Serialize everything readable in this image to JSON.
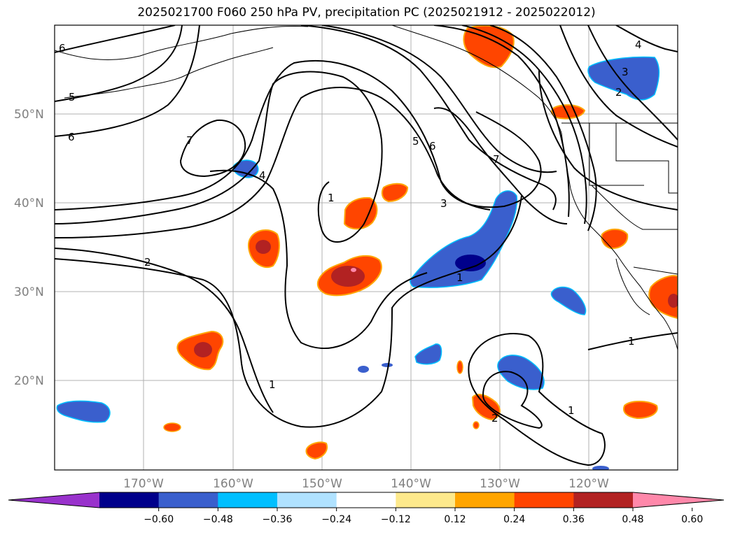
{
  "title": "2025021700 F060 250 hPa PV, precipitation PC (2025021912 - 2025022012)",
  "lat_labels": [
    "50°N",
    "40°N",
    "30°N",
    "20°N"
  ],
  "lon_labels": [
    "170°W",
    "160°W",
    "150°W",
    "140°W",
    "130°W",
    "120°W"
  ],
  "colorbar": {
    "colors": [
      "#9932cc",
      "#00008b",
      "#3a5fcd",
      "#00bfff",
      "#b0e2ff",
      "#ffffff",
      "#fde98c",
      "#ffa500",
      "#ff4500",
      "#b22222",
      "#ff88aa"
    ],
    "tick_labels": [
      "−0.60",
      "−0.48",
      "−0.36",
      "−0.24",
      "−0.12",
      "0.12",
      "0.24",
      "0.36",
      "0.48",
      "0.60"
    ]
  },
  "contour_labels": [
    "6",
    "5",
    "6",
    "7",
    "4",
    "1",
    "5",
    "6",
    "7",
    "3",
    "2",
    "1",
    "4",
    "3",
    "2",
    "1",
    "1",
    "1",
    "2"
  ]
}
